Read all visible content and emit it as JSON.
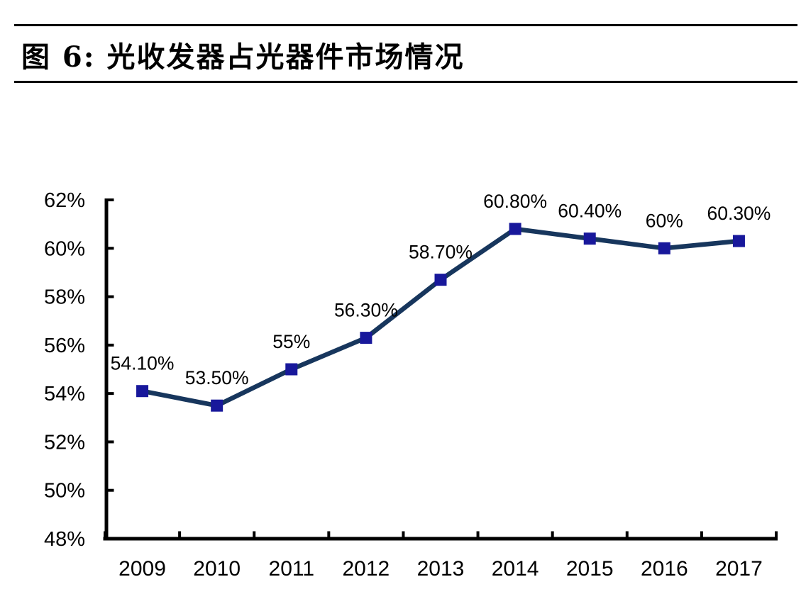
{
  "figure": {
    "title": "图 6:  光收发器占光器件市场情况"
  },
  "chart_data": {
    "type": "line",
    "title": "图 6: 光收发器占光器件市场情况",
    "x": [
      "2009",
      "2010",
      "2011",
      "2012",
      "2013",
      "2014",
      "2015",
      "2016",
      "2017"
    ],
    "values": [
      54.1,
      53.5,
      55,
      56.3,
      58.7,
      60.8,
      60.4,
      60,
      60.3
    ],
    "point_labels": [
      "54.10%",
      "53.50%",
      "55%",
      "56.30%",
      "58.70%",
      "60.80%",
      "60.40%",
      "60%",
      "60.30%"
    ],
    "xlabel": "",
    "ylabel": "",
    "ylim": [
      48,
      62
    ],
    "y_tick_step": 2,
    "y_tick_labels": [
      "62%",
      "60%",
      "58%",
      "56%",
      "54%",
      "52%",
      "50%",
      "48%"
    ],
    "grid": false,
    "legend": "none",
    "marker_shape": "square",
    "colors": {
      "line": "#17365D",
      "marker": "#18189B",
      "axis": "#000000",
      "text": "#000000"
    }
  }
}
